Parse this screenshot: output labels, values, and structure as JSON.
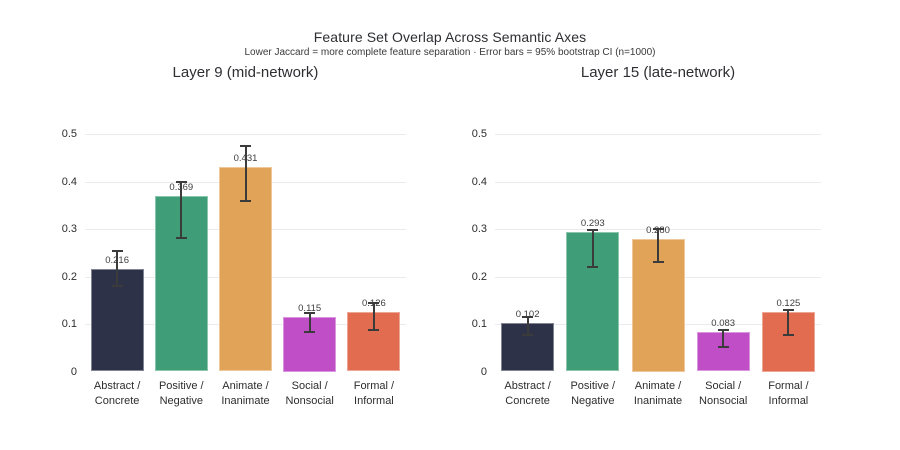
{
  "header": {
    "title": "Feature Set Overlap Across Semantic Axes",
    "subtitle": "Lower Jaccard = more complete feature separation · Error bars = 95% bootstrap CI (n=1000)"
  },
  "palette": {
    "abstract_concrete": "#2e3248",
    "positive_negative": "#3f9e78",
    "animate_inanimate": "#e0a358",
    "social_nonsocial": "#c04fc7",
    "formal_informal": "#e26c50",
    "error_bar": "#3b3b3b",
    "gridline": "#e9ebee",
    "background": "#ffffff"
  },
  "chart_data": [
    {
      "type": "bar",
      "title": "Layer 9 (mid-network)",
      "categories": [
        "Abstract / Concrete",
        "Positive / Negative",
        "Animate / Inanimate",
        "Social / Nonsocial",
        "Formal / Informal"
      ],
      "tick_label_lines": [
        [
          "Abstract /",
          "Concrete"
        ],
        [
          "Positive /",
          "Negative"
        ],
        [
          "Animate /",
          "Inanimate"
        ],
        [
          "Social /",
          "Nonsocial"
        ],
        [
          "Formal /",
          "Informal"
        ]
      ],
      "values": [
        0.216,
        0.369,
        0.431,
        0.115,
        0.126
      ],
      "value_labels": [
        "0.216",
        "0.369",
        "0.431",
        "0.115",
        "0.126"
      ],
      "ci_low": [
        0.181,
        0.282,
        0.358,
        0.084,
        0.087
      ],
      "ci_high": [
        0.253,
        0.398,
        0.475,
        0.124,
        0.144
      ],
      "bar_colors": [
        "#2e3248",
        "#3f9e78",
        "#e0a358",
        "#c04fc7",
        "#e26c50"
      ],
      "xlabel": "",
      "ylabel": "",
      "ylim": [
        0,
        0.5
      ],
      "yticks": [
        0,
        0.1,
        0.2,
        0.3,
        0.4,
        0.5
      ],
      "grid": true,
      "legend": "none"
    },
    {
      "type": "bar",
      "title": "Layer 15 (late-network)",
      "categories": [
        "Abstract / Concrete",
        "Positive / Negative",
        "Animate / Inanimate",
        "Social / Nonsocial",
        "Formal / Informal"
      ],
      "tick_label_lines": [
        [
          "Abstract /",
          "Concrete"
        ],
        [
          "Positive /",
          "Negative"
        ],
        [
          "Animate /",
          "Inanimate"
        ],
        [
          "Social /",
          "Nonsocial"
        ],
        [
          "Formal /",
          "Informal"
        ]
      ],
      "values": [
        0.102,
        0.293,
        0.28,
        0.083,
        0.125
      ],
      "value_labels": [
        "0.102",
        "0.293",
        "0.280",
        "0.083",
        "0.125"
      ],
      "ci_low": [
        0.076,
        0.221,
        0.23,
        0.052,
        0.077
      ],
      "ci_high": [
        0.114,
        0.298,
        0.301,
        0.088,
        0.13
      ],
      "bar_colors": [
        "#2e3248",
        "#3f9e78",
        "#e0a358",
        "#c04fc7",
        "#e26c50"
      ],
      "xlabel": "",
      "ylabel": "",
      "ylim": [
        0,
        0.5
      ],
      "yticks": [
        0,
        0.1,
        0.2,
        0.3,
        0.4,
        0.5
      ],
      "grid": true,
      "legend": "none"
    }
  ]
}
